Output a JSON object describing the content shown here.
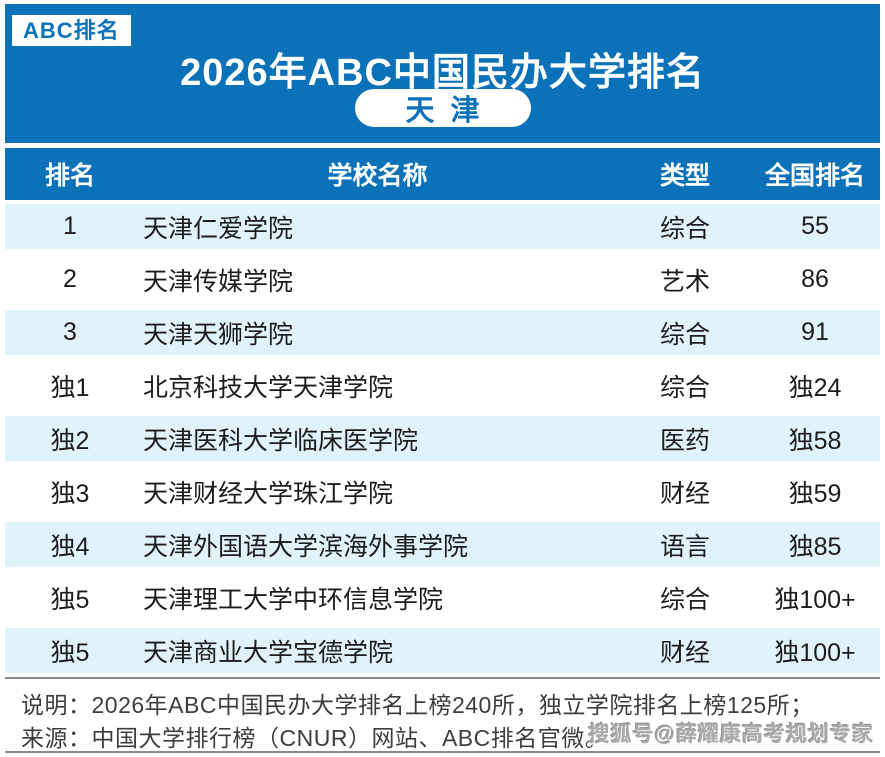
{
  "colors": {
    "accent_blue": "#0b72b9",
    "row_alt_blue": "#e1f3fa",
    "footer_text": "#3d3d3d",
    "body_text": "#1c1c1c"
  },
  "header": {
    "badge": "ABC排名",
    "title": "2026年ABC中国民办大学排名",
    "region": "天津"
  },
  "chart_data": {
    "type": "table",
    "title": "2026年ABC中国民办大学排名",
    "subtitle": "天津",
    "columns": [
      "排名",
      "学校名称",
      "类型",
      "全国排名"
    ],
    "rows": [
      {
        "rank": "1",
        "school": "天津仁爱学院",
        "type": "综合",
        "national_rank": "55"
      },
      {
        "rank": "2",
        "school": "天津传媒学院",
        "type": "艺术",
        "national_rank": "86"
      },
      {
        "rank": "3",
        "school": "天津天狮学院",
        "type": "综合",
        "national_rank": "91"
      },
      {
        "rank": "独1",
        "school": "北京科技大学天津学院",
        "type": "综合",
        "national_rank": "独24"
      },
      {
        "rank": "独2",
        "school": "天津医科大学临床医学院",
        "type": "医药",
        "national_rank": "独58"
      },
      {
        "rank": "独3",
        "school": "天津财经大学珠江学院",
        "type": "财经",
        "national_rank": "独59"
      },
      {
        "rank": "独4",
        "school": "天津外国语大学滨海外事学院",
        "type": "语言",
        "national_rank": "独85"
      },
      {
        "rank": "独5",
        "school": "天津理工大学中环信息学院",
        "type": "综合",
        "national_rank": "独100+"
      },
      {
        "rank": "独5",
        "school": "天津商业大学宝德学院",
        "type": "财经",
        "national_rank": "独100+"
      }
    ]
  },
  "footer": {
    "note": "说明：2026年ABC中国民办大学排名上榜240所，独立学院排名上榜125所；",
    "source": "来源：中国大学排行榜（CNUR）网站、ABC排名官微。",
    "watermark": "搜狐号@薛耀康高考规划专家"
  }
}
